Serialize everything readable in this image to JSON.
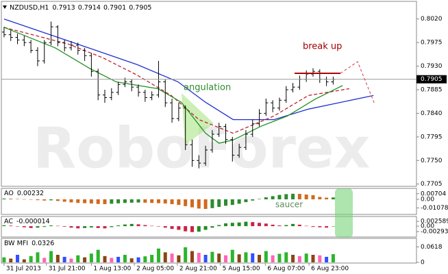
{
  "header": {
    "symbol": "NZDUSD,H1",
    "open": 0.7913,
    "high": 0.7914,
    "low": 0.7901,
    "close": 0.7905
  },
  "watermark": "RoboForex",
  "annotations": {
    "break_up": "break up",
    "angulation": "angulation",
    "saucer": "saucer"
  },
  "chart_data": [
    {
      "type": "ohlc",
      "color": "#000000",
      "xlim": [
        -0.4,
        61.4
      ],
      "ylim": [
        0.7702,
        0.8051
      ],
      "xticks": [
        {
          "value": 0,
          "label": "31 Jul 2013"
        },
        {
          "value": 6.3,
          "label": "31 Jul 21:00"
        },
        {
          "value": 13,
          "label": "1 Aug 13:00"
        },
        {
          "value": 19.4,
          "label": "2 Aug 05:00"
        },
        {
          "value": 25.8,
          "label": "2 Aug 21:00"
        },
        {
          "value": 32.2,
          "label": "5 Aug 15:00"
        },
        {
          "value": 38.9,
          "label": "6 Aug 07:00"
        },
        {
          "value": 45.4,
          "label": "6 Aug 23:00"
        }
      ],
      "yticks": [
        {
          "value": 0.802,
          "label": "0.8020"
        },
        {
          "value": 0.7975,
          "label": "0.7975"
        },
        {
          "value": 0.793,
          "label": "0.7930"
        },
        {
          "value": 0.7885,
          "label": "0.7885"
        },
        {
          "value": 0.784,
          "label": "0.7840"
        },
        {
          "value": 0.7795,
          "label": "0.7795"
        },
        {
          "value": 0.775,
          "label": "0.7750"
        },
        {
          "value": 0.7705,
          "label": "0.7705"
        }
      ],
      "open": [
        0.7995,
        0.799,
        0.7985,
        0.798,
        0.7975,
        0.796,
        0.794,
        0.7975,
        0.8005,
        0.7975,
        0.7965,
        0.797,
        0.796,
        0.795,
        0.792,
        0.7875,
        0.787,
        0.788,
        0.7895,
        0.79,
        0.789,
        0.788,
        0.787,
        0.7875,
        0.79,
        0.786,
        0.783,
        0.785,
        0.778,
        0.775,
        0.7745,
        0.777,
        0.78,
        0.7815,
        0.779,
        0.776,
        0.7775,
        0.78,
        0.782,
        0.784,
        0.786,
        0.785,
        0.7865,
        0.7885,
        0.789,
        0.7905,
        0.7915,
        0.792,
        0.7905,
        0.79
      ],
      "high": [
        0.8005,
        0.7998,
        0.7992,
        0.7988,
        0.798,
        0.7966,
        0.798,
        0.8015,
        0.8008,
        0.798,
        0.7978,
        0.7975,
        0.7965,
        0.7955,
        0.7925,
        0.7885,
        0.7888,
        0.79,
        0.7908,
        0.7905,
        0.7895,
        0.7885,
        0.7882,
        0.794,
        0.7905,
        0.7868,
        0.786,
        0.7855,
        0.779,
        0.776,
        0.7778,
        0.7808,
        0.7822,
        0.782,
        0.7795,
        0.7782,
        0.7808,
        0.7828,
        0.7848,
        0.7868,
        0.7865,
        0.787,
        0.7892,
        0.7898,
        0.7912,
        0.7922,
        0.7926,
        0.7924,
        0.791,
        0.791
      ],
      "low": [
        0.7985,
        0.7978,
        0.7972,
        0.7968,
        0.7955,
        0.793,
        0.7935,
        0.797,
        0.7968,
        0.7958,
        0.796,
        0.7952,
        0.794,
        0.791,
        0.7865,
        0.786,
        0.7865,
        0.7875,
        0.789,
        0.7882,
        0.7872,
        0.7862,
        0.7865,
        0.787,
        0.7852,
        0.7822,
        0.7825,
        0.777,
        0.7738,
        0.7735,
        0.774,
        0.7765,
        0.7795,
        0.7782,
        0.7748,
        0.7755,
        0.777,
        0.7795,
        0.7815,
        0.7835,
        0.7842,
        0.7845,
        0.786,
        0.788,
        0.7885,
        0.79,
        0.791,
        0.7898,
        0.7892,
        0.7895
      ],
      "close": [
        0.799,
        0.7985,
        0.798,
        0.7975,
        0.796,
        0.794,
        0.7975,
        0.8005,
        0.7975,
        0.7965,
        0.797,
        0.796,
        0.795,
        0.792,
        0.7875,
        0.787,
        0.788,
        0.7895,
        0.79,
        0.789,
        0.788,
        0.787,
        0.7875,
        0.79,
        0.786,
        0.783,
        0.785,
        0.778,
        0.775,
        0.7745,
        0.777,
        0.78,
        0.7815,
        0.779,
        0.776,
        0.7775,
        0.78,
        0.782,
        0.784,
        0.786,
        0.785,
        0.7865,
        0.7885,
        0.789,
        0.7905,
        0.7915,
        0.792,
        0.7905,
        0.79,
        0.7905
      ],
      "lines": [
        {
          "color": "#1f2fd0",
          "dash": false,
          "x": [
            0,
            9.6,
            19.8,
            25.9,
            30,
            34.1,
            40.2,
            45.3,
            55
          ],
          "values": [
            0.802,
            0.7978,
            0.7933,
            0.79,
            0.7861,
            0.7828,
            0.7828,
            0.7848,
            0.7874
          ]
        },
        {
          "color": "#c02030",
          "dash": true,
          "x": [
            0,
            9.6,
            14.7,
            19.8,
            24.9,
            29,
            34.1,
            40.2,
            45.3,
            51.4
          ],
          "values": [
            0.8004,
            0.7972,
            0.7946,
            0.7913,
            0.7874,
            0.7828,
            0.7802,
            0.7835,
            0.7874,
            0.7887
          ]
        },
        {
          "color": "#209020",
          "dash": false,
          "x": [
            0,
            7.6,
            12.7,
            16.7,
            22.9,
            26.4,
            30,
            32,
            34.1,
            38.2,
            42.2,
            46.3,
            50.4
          ],
          "values": [
            0.8004,
            0.7965,
            0.7926,
            0.79,
            0.7887,
            0.7861,
            0.7802,
            0.7783,
            0.7789,
            0.7815,
            0.7835,
            0.7867,
            0.7893
          ]
        }
      ]
    },
    {
      "type": "bar",
      "title": "AO",
      "up_color": "#2e8b2e",
      "down_color": "#d2691e",
      "xlim": [
        -0.4,
        61.4
      ],
      "ylim": [
        -0.018,
        0.012
      ],
      "yticks": [
        0.00704,
        {
          "value": 0,
          "label": "0.00"
        },
        -0.01078
      ],
      "values": [
        0.001,
        0.0008,
        0.0005,
        0.0002,
        -0.0003,
        -0.001,
        -0.0015,
        -0.0012,
        -0.002,
        -0.003,
        -0.0038,
        -0.0045,
        -0.0048,
        -0.0052,
        -0.0058,
        -0.006,
        -0.0055,
        -0.005,
        -0.0045,
        -0.0042,
        -0.004,
        -0.0042,
        -0.0045,
        -0.0048,
        -0.0052,
        -0.006,
        -0.007,
        -0.0085,
        -0.01,
        -0.0115,
        -0.012,
        -0.011,
        -0.0095,
        -0.008,
        -0.007,
        -0.0055,
        -0.0035,
        -0.0015,
        0.0005,
        0.0025,
        0.004,
        0.0055,
        0.0065,
        0.007,
        0.0068,
        0.006,
        0.0052,
        0.003,
        0.0021,
        0.00232
      ]
    },
    {
      "type": "bar",
      "title": "AC",
      "up_color": "#228b22",
      "down_color": "#cc2244",
      "xlim": [
        -0.4,
        61.4
      ],
      "ylim": [
        -0.0055,
        0.0045
      ],
      "yticks": [
        0.002589,
        {
          "value": 0,
          "label": "0.00"
        },
        -0.00293
      ],
      "values": [
        0.0005,
        0.0003,
        -0.0002,
        -0.0006,
        -0.001,
        -0.0008,
        -0.0004,
        0.0004,
        0.0002,
        -0.0003,
        -0.0008,
        -0.0012,
        -0.001,
        -0.0007,
        -0.001,
        -0.0012,
        -0.0005,
        0.0004,
        0.0009,
        0.0012,
        0.001,
        0.0006,
        0.0002,
        -0.0002,
        -0.0008,
        -0.0015,
        -0.002,
        -0.0028,
        -0.0032,
        -0.003,
        -0.002,
        -0.0008,
        0.0006,
        0.0015,
        0.0018,
        0.002,
        0.0024,
        0.0022,
        0.0018,
        0.0014,
        0.0008,
        0.0004,
        0.0006,
        0.0012,
        0.0008,
        0.0002,
        -0.0004,
        -0.0006,
        -0.0008,
        -1.4e-05
      ]
    },
    {
      "type": "bar",
      "title": "BW MFI",
      "xlim": [
        -0.4,
        61.4
      ],
      "ylim": [
        0,
        0.09
      ],
      "yticks": [
        0.0618,
        0
      ],
      "values": [
        0.02,
        0.015,
        0.03,
        0.012,
        0.025,
        0.04,
        0.018,
        0.045,
        0.03,
        0.022,
        0.015,
        0.028,
        0.02,
        0.035,
        0.05,
        0.025,
        0.018,
        0.022,
        0.03,
        0.016,
        0.02,
        0.024,
        0.03,
        0.055,
        0.04,
        0.035,
        0.028,
        0.06,
        0.045,
        0.038,
        0.03,
        0.042,
        0.035,
        0.028,
        0.05,
        0.032,
        0.04,
        0.036,
        0.03,
        0.045,
        0.028,
        0.034,
        0.04,
        0.03,
        0.025,
        0.035,
        0.03,
        0.028,
        0.022,
        0.0326
      ],
      "bar_colors": [
        "#2db52d",
        "#8b4513",
        "#3050ff",
        "#8b4513",
        "#2db52d",
        "#2db52d",
        "#ff66b3",
        "#2db52d",
        "#8b4513",
        "#3050ff",
        "#ff66b3",
        "#2db52d",
        "#8b4513",
        "#2db52d",
        "#2db52d",
        "#8b4513",
        "#ff66b3",
        "#3050ff",
        "#2db52d",
        "#8b4513",
        "#3050ff",
        "#2db52d",
        "#2db52d",
        "#2db52d",
        "#8b4513",
        "#ff66b3",
        "#8b4513",
        "#2db52d",
        "#8b4513",
        "#ff66b3",
        "#3050ff",
        "#2db52d",
        "#8b4513",
        "#ff66b3",
        "#2db52d",
        "#8b4513",
        "#2db52d",
        "#3050ff",
        "#8b4513",
        "#2db52d",
        "#ff66b3",
        "#2db52d",
        "#2db52d",
        "#8b4513",
        "#ff66b3",
        "#2db52d",
        "#8b4513",
        "#ff66b3",
        "#3050ff",
        "#2db52d"
      ]
    }
  ]
}
